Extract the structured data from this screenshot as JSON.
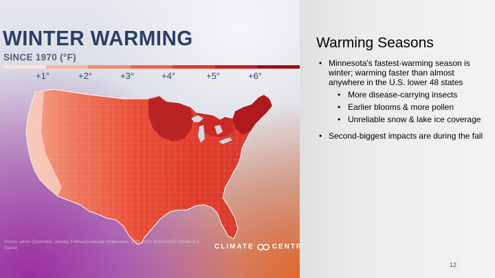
{
  "map_panel": {
    "title": "WINTER WARMING",
    "subtitle": "SINCE 1970 (°F)",
    "scale_ticks": [
      "+1°",
      "+2°",
      "+3°",
      "+4°",
      "+5°",
      "+6°"
    ],
    "scale_colors": [
      "#fde2d8",
      "#f9b7a0",
      "#f38a6c",
      "#ee6248",
      "#e2392a",
      "#c8201d",
      "#9f0f14"
    ],
    "source": "Source: winter (December, January, February) average temperature, 1970–2023, NOAA/NCEI Climate at a Glance",
    "brand_left": "CLIMATE",
    "brand_right": "CENTRAL",
    "logo_icon": "climate-central-logo"
  },
  "slide": {
    "title": "Warming Seasons",
    "bullets": [
      {
        "text": "Minnesota's fastest-warming season is winter; warming faster than almost anywhere in the U.S. lower 48 states",
        "sub": [
          "More disease-carrying insects",
          "Earlier blooms & more pollen",
          "Unreliable snow & lake ice coverage"
        ]
      },
      {
        "text": "Second-biggest impacts are during the fall"
      }
    ],
    "page_number": "12"
  }
}
